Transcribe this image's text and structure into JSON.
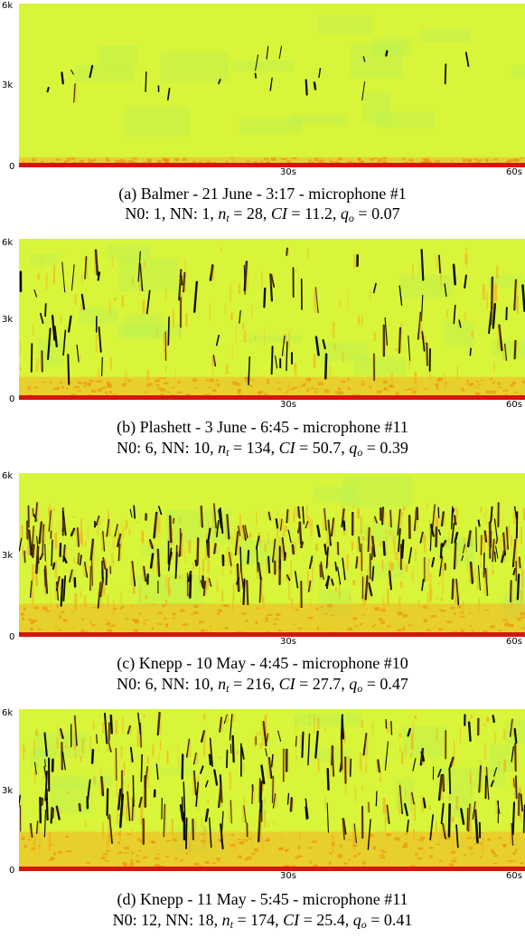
{
  "panels": [
    {
      "id": "a",
      "y_ticks": [
        "6k",
        "3k",
        "0"
      ],
      "x_ticks": [
        "30s",
        "60s"
      ],
      "caption_line1": "(a) Balmer - 21 June - 3:17 - microphone #1",
      "stats": {
        "N0": "1",
        "NN": "1",
        "n_t": "28",
        "CI": "11.2",
        "q_o": "0.07"
      },
      "activity": "sparse"
    },
    {
      "id": "b",
      "y_ticks": [
        "6k",
        "3k",
        "0"
      ],
      "x_ticks": [
        "30s",
        "60s"
      ],
      "caption_line1": "(b) Plashett - 3 June - 6:45 - microphone #11",
      "stats": {
        "N0": "6",
        "NN": "10",
        "n_t": "134",
        "CI": "50.7",
        "q_o": "0.39"
      },
      "activity": "medium"
    },
    {
      "id": "c",
      "y_ticks": [
        "6k",
        "3k",
        "0"
      ],
      "x_ticks": [
        "30s",
        "60s"
      ],
      "caption_line1": "(c) Knepp - 10 May - 4:45 - microphone #10",
      "stats": {
        "N0": "6",
        "NN": "10",
        "n_t": "216",
        "CI": "27.7",
        "q_o": "0.47"
      },
      "activity": "dense"
    },
    {
      "id": "d",
      "y_ticks": [
        "6k",
        "3k",
        "0"
      ],
      "x_ticks": [
        "30s",
        "60s"
      ],
      "caption_line1": "(d) Knepp - 11 May - 5:45 - microphone #11",
      "stats": {
        "N0": "12",
        "NN": "18",
        "n_t": "174",
        "CI": "25.4",
        "q_o": "0.41"
      },
      "activity": "dense-wide"
    }
  ],
  "labels": {
    "N0": "N0:",
    "NN": "NN:"
  },
  "colors": {
    "background": "#d9f53a",
    "low_band": "#f08a10",
    "base": "#d8140a",
    "trace": "#101000",
    "warm": "#f3b020",
    "cool": "#a8f060"
  }
}
